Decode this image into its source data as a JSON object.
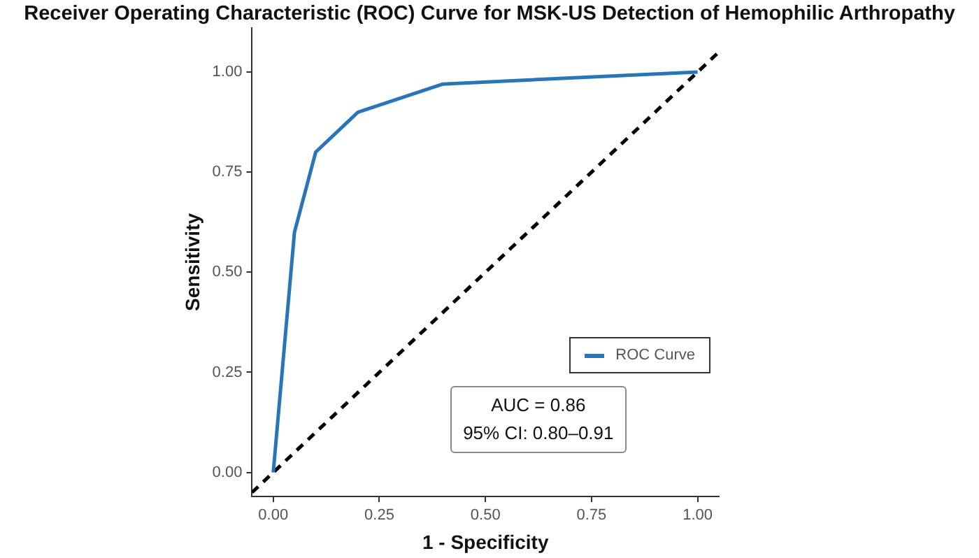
{
  "chart_data": {
    "type": "line",
    "title": "Receiver Operating Characteristic (ROC) Curve for MSK-US Detection of Hemophilic Arthropathy",
    "xlabel": "1 - Specificity",
    "ylabel": "Sensitivity",
    "series": [
      {
        "name": "ROC Curve",
        "color": "#2a75b8",
        "x": [
          0,
          0.05,
          0.1,
          0.2,
          0.4,
          1
        ],
        "values": [
          0,
          0.6,
          0.8,
          0.9,
          0.97,
          1
        ],
        "line_style": "solid"
      },
      {
        "color": "#000000",
        "x": [
          -0.05,
          1.05
        ],
        "values": [
          -0.05,
          1.05
        ],
        "line_style": "dashed"
      }
    ],
    "xlim": [
      -0.05,
      1.05
    ],
    "ylim": [
      -0.06,
      1.11
    ],
    "xticks": [
      {
        "value": 0,
        "label": "0.00"
      },
      {
        "value": 0.25,
        "label": "0.25"
      },
      {
        "value": 0.5,
        "label": "0.50"
      },
      {
        "value": 0.75,
        "label": "0.75"
      },
      {
        "value": 1,
        "label": "1.00"
      }
    ],
    "yticks": [
      {
        "value": 0,
        "label": "0.00"
      },
      {
        "value": 0.25,
        "label": "0.25"
      },
      {
        "value": 0.5,
        "label": "0.50"
      },
      {
        "value": 0.75,
        "label": "0.75"
      },
      {
        "value": 1,
        "label": "1.00"
      }
    ],
    "annotations": [
      "AUC = 0.86",
      "95% CI: 0.80–0.91"
    ],
    "grid": false,
    "legend": "right",
    "marker": "none"
  }
}
